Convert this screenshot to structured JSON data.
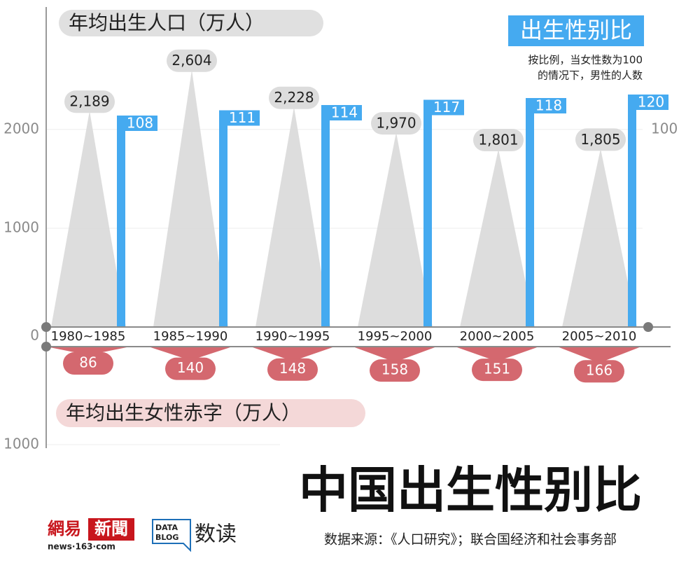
{
  "chart_data": {
    "type": "combo",
    "title": "中国出生性别比",
    "source": "数据来源：《人口研究》；联合国经济和社会事务部",
    "categories": [
      "1980~1985",
      "1985~1990",
      "1990~1995",
      "1995~2000",
      "2000~2005",
      "2005~2010"
    ],
    "series": [
      {
        "name": "年均出生人口（万人）",
        "type": "triangle",
        "color": "#d9d9d9",
        "values": [
          2189,
          2604,
          2228,
          1970,
          1801,
          1805
        ],
        "value_labels": [
          "2,189",
          "2,604",
          "2,228",
          "1,970",
          "1,801",
          "1,805"
        ]
      },
      {
        "name": "出生性别比",
        "type": "bar",
        "axis": "y2",
        "color": "#45aaf0",
        "note": [
          "按比例，当女性数为100",
          "的情况下，男性的人数"
        ],
        "values": [
          108,
          111,
          114,
          117,
          118,
          120
        ]
      },
      {
        "name": "年均出生女性赤字（万人）",
        "type": "triangle-down",
        "axis": "deficit",
        "color": "#d4686f",
        "values": [
          86,
          140,
          148,
          158,
          151,
          166
        ]
      }
    ],
    "ylim": [
      0,
      3240
    ],
    "yticks": [
      0,
      1000,
      2000
    ],
    "y2lim": [
      -12.8,
      170
    ],
    "y2ticks": [
      100
    ],
    "deficit_ylim": [
      0,
      1000
    ],
    "deficit_yticks": [
      1000
    ],
    "grid": true,
    "logos": [
      "網易",
      "新聞",
      "news·163·com",
      "DATA",
      "BLOG",
      "数读"
    ]
  }
}
